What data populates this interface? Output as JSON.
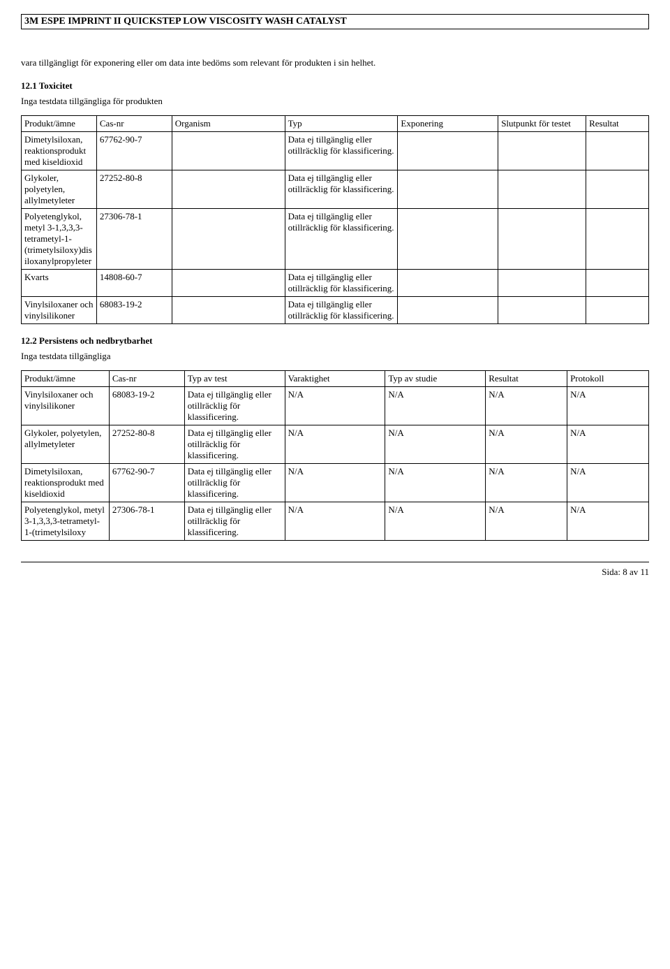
{
  "header": {
    "title": "3M ESPE IMPRINT II QUICKSTEP LOW VISCOSITY WASH CATALYST"
  },
  "intro": {
    "text": "vara tillgängligt för exponering eller om data inte bedöms som relevant för produkten i sin helhet."
  },
  "section1": {
    "heading": "12.1 Toxicitet",
    "subtext": "Inga testdata tillgängliga för produkten",
    "columns": [
      "Produkt/ämne",
      "Cas-nr",
      "Organism",
      "Typ",
      "Exponering",
      "Slutpunkt för testet",
      "Resultat"
    ],
    "rows": [
      {
        "name": "Dimetylsiloxan, reaktionsprodukt med kiseldioxid",
        "cas": "67762-90-7",
        "organism": "",
        "typ": "Data ej tillgänglig eller otillräcklig för klassificering.",
        "exp": "",
        "slut": "",
        "res": ""
      },
      {
        "name": "Glykoler, polyetylen, allylmetyleter",
        "cas": "27252-80-8",
        "organism": "",
        "typ": "Data ej tillgänglig eller otillräcklig för klassificering.",
        "exp": "",
        "slut": "",
        "res": ""
      },
      {
        "name": "Polyetenglykol, metyl 3-1,3,3,3-tetrametyl-1-(trimetylsiloxy)disiloxanylpropyleter",
        "cas": "27306-78-1",
        "organism": "",
        "typ": "Data ej tillgänglig eller otillräcklig för klassificering.",
        "exp": "",
        "slut": "",
        "res": ""
      },
      {
        "name": "Kvarts",
        "cas": "14808-60-7",
        "organism": "",
        "typ": "Data ej tillgänglig eller otillräcklig för klassificering.",
        "exp": "",
        "slut": "",
        "res": ""
      },
      {
        "name": "Vinylsiloxaner och vinylsilikoner",
        "cas": "68083-19-2",
        "organism": "",
        "typ": "Data ej tillgänglig eller otillräcklig för klassificering.",
        "exp": "",
        "slut": "",
        "res": ""
      }
    ]
  },
  "section2": {
    "heading": "12.2 Persistens och nedbrytbarhet",
    "subtext": "Inga testdata tillgängliga",
    "columns": [
      "Produkt/ämne",
      "Cas-nr",
      "Typ av test",
      "Varaktighet",
      "Typ av studie",
      "Resultat",
      "Protokoll"
    ],
    "rows": [
      {
        "name": "Vinylsiloxaner och vinylsilikoner",
        "cas": "68083-19-2",
        "typ": " Data ej tillgänglig eller otillräcklig för klassificering.",
        "var": "N/A",
        "stud": "N/A",
        "res": "N/A",
        "prot": "N/A"
      },
      {
        "name": "Glykoler, polyetylen, allylmetyleter",
        "cas": "27252-80-8",
        "typ": " Data ej tillgänglig eller otillräcklig för klassificering.",
        "var": "N/A",
        "stud": "N/A",
        "res": "N/A",
        "prot": "N/A"
      },
      {
        "name": "Dimetylsiloxan, reaktionsprodukt med kiseldioxid",
        "cas": "67762-90-7",
        "typ": " Data ej tillgänglig eller otillräcklig för klassificering.",
        "var": "N/A",
        "stud": "N/A",
        "res": "N/A",
        "prot": "N/A"
      },
      {
        "name": "Polyetenglykol, metyl 3-1,3,3,3-tetrametyl-1-(trimetylsiloxy",
        "cas": "27306-78-1",
        "typ": " Data ej tillgänglig eller otillräcklig för klassificering.",
        "var": "N/A",
        "stud": "N/A",
        "res": "N/A",
        "prot": "N/A"
      }
    ]
  },
  "footer": {
    "page_label": "Sida: 8 av  11"
  }
}
